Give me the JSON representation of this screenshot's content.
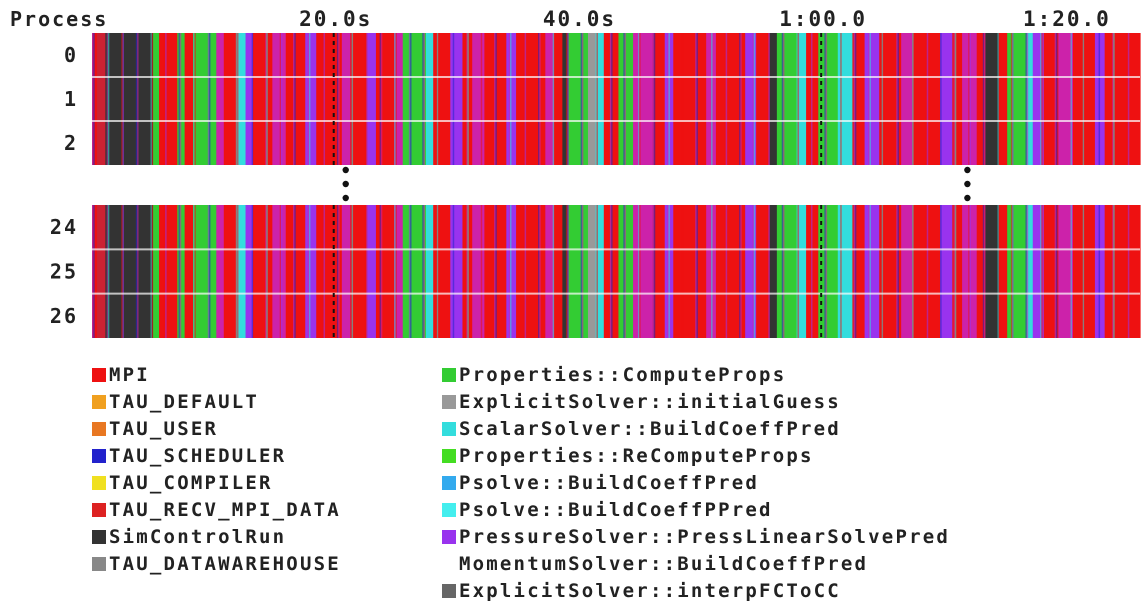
{
  "chart_data": {
    "type": "timeline",
    "header_label": "Process",
    "x_ticks": [
      {
        "label": "20.0s",
        "value": 20
      },
      {
        "label": "40.0s",
        "value": 40
      },
      {
        "label": "1:00.0",
        "value": 60
      },
      {
        "label": "1:20.0",
        "value": 80
      }
    ],
    "x_range": [
      0,
      86
    ],
    "rows_top": [
      "0",
      "1",
      "2"
    ],
    "rows_bottom": [
      "24",
      "25",
      "26"
    ],
    "ellipsis": "⋮",
    "colors": {
      "MPI": "#ee1111",
      "TAU_DEFAULT": "#f0a020",
      "TAU_USER": "#e87722",
      "TAU_SCHEDULER": "#2222cc",
      "TAU_COMPILER": "#f0e020",
      "TAU_RECV_MPI_DATA": "#dd2222",
      "SimControlRun": "#333333",
      "TAU_DATAWAREHOUSE": "#888888",
      "ComputeProps": "#33cc33",
      "initialGuess": "#999999",
      "BuildCoeffPred": "#33dddd",
      "ReComputeProps": "#44dd22",
      "PsolveBuildCoeffPred": "#33aaee",
      "PsolveBuildCoeffPPred": "#44eeee",
      "PressLinearSolvePred": "#9933ee",
      "interpFCToCC": "#666666"
    },
    "segments": [
      {
        "start": 0.0,
        "end": 0.4,
        "color": "#ee1111"
      },
      {
        "start": 0.4,
        "end": 1.1,
        "color": "#cc2233"
      },
      {
        "start": 1.1,
        "end": 5.0,
        "color": "#333333"
      },
      {
        "start": 5.0,
        "end": 5.5,
        "color": "#33cc33"
      },
      {
        "start": 5.5,
        "end": 7.0,
        "color": "#ee1111"
      },
      {
        "start": 7.0,
        "end": 7.6,
        "color": "#33cc33"
      },
      {
        "start": 7.6,
        "end": 8.3,
        "color": "#ee1111"
      },
      {
        "start": 8.3,
        "end": 10.2,
        "color": "#33cc33"
      },
      {
        "start": 10.2,
        "end": 10.8,
        "color": "#cc22aa"
      },
      {
        "start": 10.8,
        "end": 11.9,
        "color": "#ee1111"
      },
      {
        "start": 11.9,
        "end": 12.6,
        "color": "#33dddd"
      },
      {
        "start": 12.6,
        "end": 13.2,
        "color": "#9933ee"
      },
      {
        "start": 13.2,
        "end": 14.8,
        "color": "#ee1111"
      },
      {
        "start": 14.8,
        "end": 15.9,
        "color": "#cc22aa"
      },
      {
        "start": 15.9,
        "end": 17.5,
        "color": "#ee1111"
      },
      {
        "start": 17.5,
        "end": 18.4,
        "color": "#9933ee"
      },
      {
        "start": 18.4,
        "end": 20.5,
        "color": "#ee1111"
      },
      {
        "start": 20.5,
        "end": 21.2,
        "color": "#cc22aa"
      },
      {
        "start": 21.2,
        "end": 22.6,
        "color": "#ee1111"
      },
      {
        "start": 22.6,
        "end": 23.3,
        "color": "#9933ee"
      },
      {
        "start": 23.3,
        "end": 24.8,
        "color": "#ee1111"
      },
      {
        "start": 24.8,
        "end": 25.5,
        "color": "#cc22aa"
      },
      {
        "start": 25.5,
        "end": 27.4,
        "color": "#33cc33"
      },
      {
        "start": 27.4,
        "end": 28.0,
        "color": "#33dddd"
      },
      {
        "start": 28.0,
        "end": 29.4,
        "color": "#ee1111"
      },
      {
        "start": 29.4,
        "end": 30.4,
        "color": "#9933ee"
      },
      {
        "start": 30.4,
        "end": 31.2,
        "color": "#ee1111"
      },
      {
        "start": 31.2,
        "end": 32.2,
        "color": "#cc22aa"
      },
      {
        "start": 32.2,
        "end": 34.0,
        "color": "#ee1111"
      },
      {
        "start": 34.0,
        "end": 34.8,
        "color": "#9933ee"
      },
      {
        "start": 34.8,
        "end": 37.2,
        "color": "#ee1111"
      },
      {
        "start": 37.2,
        "end": 37.9,
        "color": "#cc22aa"
      },
      {
        "start": 37.9,
        "end": 38.6,
        "color": "#ee1111"
      },
      {
        "start": 38.6,
        "end": 39.1,
        "color": "#333333"
      },
      {
        "start": 39.1,
        "end": 40.7,
        "color": "#33cc33"
      },
      {
        "start": 40.7,
        "end": 41.4,
        "color": "#999999"
      },
      {
        "start": 41.4,
        "end": 42.0,
        "color": "#33dddd"
      },
      {
        "start": 42.0,
        "end": 43.2,
        "color": "#ee1111"
      },
      {
        "start": 43.2,
        "end": 44.4,
        "color": "#33cc33"
      },
      {
        "start": 44.4,
        "end": 46.0,
        "color": "#cc22aa"
      },
      {
        "start": 46.0,
        "end": 47.0,
        "color": "#ee1111"
      },
      {
        "start": 47.0,
        "end": 47.7,
        "color": "#9933ee"
      },
      {
        "start": 47.7,
        "end": 50.4,
        "color": "#ee1111"
      },
      {
        "start": 50.4,
        "end": 51.2,
        "color": "#cc22aa"
      },
      {
        "start": 51.2,
        "end": 53.6,
        "color": "#ee1111"
      },
      {
        "start": 53.6,
        "end": 54.5,
        "color": "#9933ee"
      },
      {
        "start": 54.5,
        "end": 55.6,
        "color": "#ee1111"
      },
      {
        "start": 55.6,
        "end": 56.2,
        "color": "#333333"
      },
      {
        "start": 56.2,
        "end": 57.9,
        "color": "#33cc33"
      },
      {
        "start": 57.9,
        "end": 58.6,
        "color": "#33dddd"
      },
      {
        "start": 58.6,
        "end": 59.6,
        "color": "#ee1111"
      },
      {
        "start": 59.6,
        "end": 61.2,
        "color": "#33cc33"
      },
      {
        "start": 61.2,
        "end": 62.4,
        "color": "#33dddd"
      },
      {
        "start": 62.4,
        "end": 63.4,
        "color": "#ee1111"
      },
      {
        "start": 63.4,
        "end": 64.6,
        "color": "#9933ee"
      },
      {
        "start": 64.6,
        "end": 66.4,
        "color": "#ee1111"
      },
      {
        "start": 66.4,
        "end": 67.3,
        "color": "#cc22aa"
      },
      {
        "start": 67.3,
        "end": 69.6,
        "color": "#ee1111"
      },
      {
        "start": 69.6,
        "end": 70.6,
        "color": "#9933ee"
      },
      {
        "start": 70.6,
        "end": 71.4,
        "color": "#ee1111"
      },
      {
        "start": 71.4,
        "end": 72.6,
        "color": "#cc22aa"
      },
      {
        "start": 72.6,
        "end": 73.3,
        "color": "#ee1111"
      },
      {
        "start": 73.3,
        "end": 74.4,
        "color": "#333333"
      },
      {
        "start": 74.4,
        "end": 75.1,
        "color": "#ee1111"
      },
      {
        "start": 75.1,
        "end": 76.7,
        "color": "#33cc33"
      },
      {
        "start": 76.7,
        "end": 77.2,
        "color": "#33dddd"
      },
      {
        "start": 77.2,
        "end": 78.1,
        "color": "#9933ee"
      },
      {
        "start": 78.1,
        "end": 79.3,
        "color": "#ee1111"
      },
      {
        "start": 79.3,
        "end": 80.5,
        "color": "#cc22aa"
      },
      {
        "start": 80.5,
        "end": 82.3,
        "color": "#ee1111"
      },
      {
        "start": 82.3,
        "end": 83.1,
        "color": "#9933ee"
      },
      {
        "start": 83.1,
        "end": 86.0,
        "color": "#ee1111"
      }
    ],
    "legend_left": [
      {
        "label": "MPI",
        "color": "#ee1111"
      },
      {
        "label": "TAU_DEFAULT",
        "color": "#f0a020"
      },
      {
        "label": "TAU_USER",
        "color": "#e87722"
      },
      {
        "label": "TAU_SCHEDULER",
        "color": "#2222cc"
      },
      {
        "label": "TAU_COMPILER",
        "color": "#f0e020"
      },
      {
        "label": "TAU_RECV_MPI_DATA",
        "color": "#dd2222"
      },
      {
        "label": "SimControlRun",
        "color": "#333333"
      },
      {
        "label": "TAU_DATAWAREHOUSE",
        "color": "#888888"
      }
    ],
    "legend_right": [
      {
        "label": "Properties::ComputeProps",
        "color": "#33cc33"
      },
      {
        "label": "ExplicitSolver::initialGuess",
        "color": "#999999"
      },
      {
        "label": "ScalarSolver::BuildCoeffPred",
        "color": "#33dddd"
      },
      {
        "label": "Properties::ReComputeProps",
        "color": "#44dd22"
      },
      {
        "label": "Psolve::BuildCoeffPred",
        "color": "#33aaee"
      },
      {
        "label": "Psolve::BuildCoeffPPred",
        "color": "#44eeee"
      },
      {
        "label": "PressureSolver::PressLinearSolvePred",
        "color": "#9933ee"
      },
      {
        "label": "MomentumSolver::BuildCoeffPred",
        "color": ""
      },
      {
        "label": "ExplicitSolver::interpFCToCC",
        "color": "#666666"
      }
    ]
  }
}
